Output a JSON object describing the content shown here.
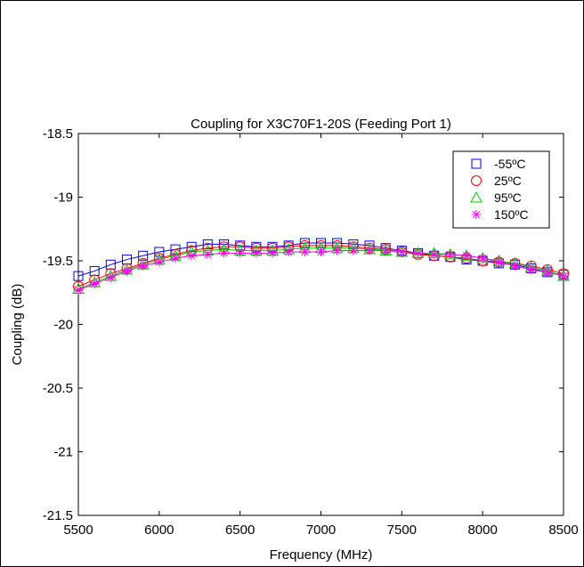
{
  "chart_data": {
    "type": "line",
    "title": "Coupling for X3C70F1-20S (Feeding Port 1)",
    "xlabel": "Frequency (MHz)",
    "ylabel": "Coupling (dB)",
    "xlim": [
      5500,
      8500
    ],
    "ylim": [
      -21.5,
      -18.5
    ],
    "x_ticks": [
      5500,
      6000,
      6500,
      7000,
      7500,
      8000,
      8500
    ],
    "y_ticks": [
      -21.5,
      -21,
      -20.5,
      -20,
      -19.5,
      -19,
      -18.5
    ],
    "x_tick_labels": [
      "5500",
      "6000",
      "6500",
      "7000",
      "7500",
      "8000",
      "8500"
    ],
    "y_tick_labels": [
      "-21.5",
      "-21",
      "-20.5",
      "-20",
      "-19.5",
      "-19",
      "-18.5"
    ],
    "grid": true,
    "legend_position": "top-right",
    "x": [
      5500,
      5600,
      5700,
      5800,
      5900,
      6000,
      6100,
      6200,
      6300,
      6400,
      6500,
      6600,
      6700,
      6800,
      6900,
      7000,
      7100,
      7200,
      7300,
      7400,
      7500,
      7600,
      7700,
      7800,
      7900,
      8000,
      8100,
      8200,
      8300,
      8400,
      8500
    ],
    "series": [
      {
        "name": "-55ºC",
        "color": "#0000ff",
        "marker": "square",
        "values": [
          -19.62,
          -19.58,
          -19.53,
          -19.49,
          -19.46,
          -19.43,
          -19.41,
          -19.39,
          -19.37,
          -19.37,
          -19.38,
          -19.39,
          -19.39,
          -19.38,
          -19.36,
          -19.36,
          -19.36,
          -19.37,
          -19.38,
          -19.4,
          -19.42,
          -19.44,
          -19.46,
          -19.47,
          -19.49,
          -19.5,
          -19.52,
          -19.53,
          -19.56,
          -19.59,
          -19.61
        ]
      },
      {
        "name": "25ºC",
        "color": "#ff0000",
        "marker": "circle",
        "values": [
          -19.7,
          -19.65,
          -19.6,
          -19.56,
          -19.52,
          -19.48,
          -19.45,
          -19.42,
          -19.4,
          -19.39,
          -19.39,
          -19.4,
          -19.4,
          -19.39,
          -19.38,
          -19.38,
          -19.38,
          -19.39,
          -19.4,
          -19.41,
          -19.43,
          -19.45,
          -19.46,
          -19.47,
          -19.48,
          -19.5,
          -19.51,
          -19.52,
          -19.54,
          -19.57,
          -19.6
        ]
      },
      {
        "name": "95ºC",
        "color": "#00cc00",
        "marker": "triangle",
        "values": [
          -19.72,
          -19.67,
          -19.62,
          -19.57,
          -19.53,
          -19.49,
          -19.46,
          -19.43,
          -19.42,
          -19.41,
          -19.42,
          -19.42,
          -19.42,
          -19.41,
          -19.4,
          -19.4,
          -19.4,
          -19.4,
          -19.41,
          -19.42,
          -19.43,
          -19.44,
          -19.44,
          -19.45,
          -19.46,
          -19.48,
          -19.5,
          -19.52,
          -19.55,
          -19.58,
          -19.62
        ]
      },
      {
        "name": "150ºC",
        "color": "#ff00ff",
        "marker": "star",
        "values": [
          -19.73,
          -19.68,
          -19.63,
          -19.58,
          -19.54,
          -19.51,
          -19.48,
          -19.46,
          -19.45,
          -19.44,
          -19.44,
          -19.44,
          -19.44,
          -19.43,
          -19.43,
          -19.43,
          -19.42,
          -19.42,
          -19.42,
          -19.42,
          -19.43,
          -19.44,
          -19.45,
          -19.45,
          -19.46,
          -19.48,
          -19.51,
          -19.54,
          -19.57,
          -19.59,
          -19.62
        ]
      }
    ]
  }
}
